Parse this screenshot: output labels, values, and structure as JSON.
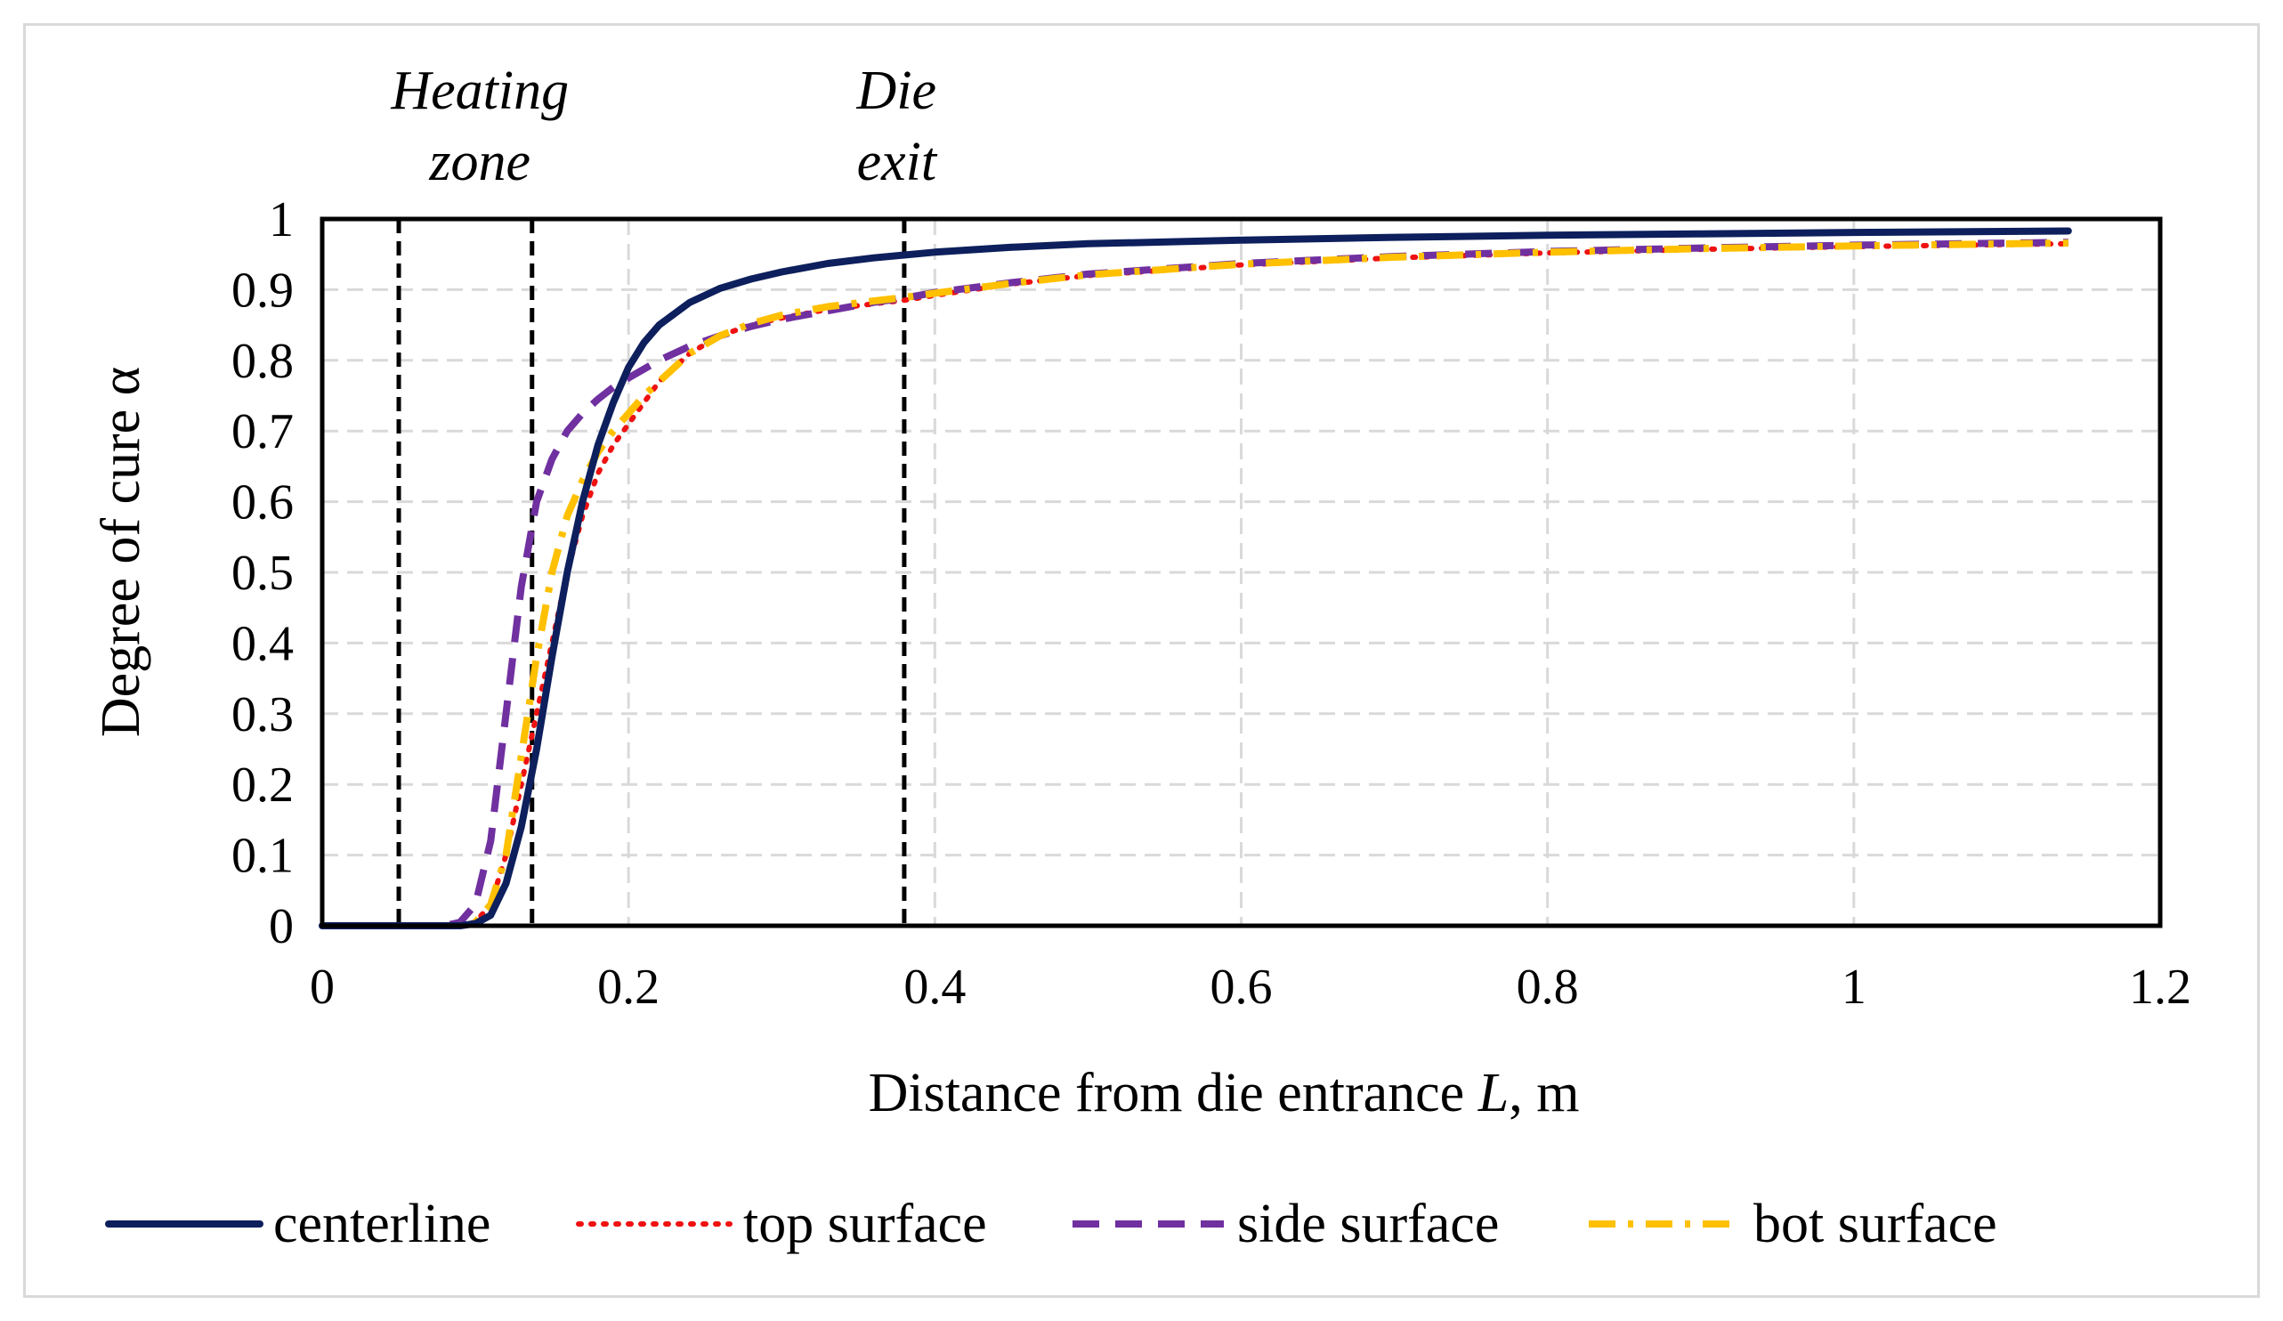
{
  "chart_data": {
    "type": "line",
    "title": "",
    "xlabel": "Distance from die entrance",
    "xlabel_var": "L",
    "xlabel_unit": ", m",
    "ylabel": "Degree of cure α",
    "xlim": [
      0,
      1.2
    ],
    "ylim": [
      0,
      1
    ],
    "xticks": [
      0,
      0.2,
      0.4,
      0.6,
      0.8,
      1,
      1.2
    ],
    "xtick_labels": [
      "0",
      "0.2",
      "0.4",
      "0.6",
      "0.8",
      "1",
      "1.2"
    ],
    "yticks": [
      0,
      0.1,
      0.2,
      0.3,
      0.4,
      0.5,
      0.6,
      0.7,
      0.8,
      0.9,
      1
    ],
    "ytick_labels": [
      "0",
      "0.1",
      "0.2",
      "0.3",
      "0.4",
      "0.5",
      "0.6",
      "0.7",
      "0.8",
      "0.9",
      "1"
    ],
    "grid": true,
    "legend_position": "bottom",
    "vertical_lines": [
      0.05,
      0.137,
      0.38
    ],
    "annotations": [
      {
        "id": "heating",
        "lines": [
          "Heating",
          "zone"
        ],
        "x": 0.103
      },
      {
        "id": "die-exit",
        "lines": [
          "Die",
          "exit"
        ],
        "x": 0.375
      }
    ],
    "series": [
      {
        "name": "centerline",
        "color": "#0d1f5c",
        "style": "solid",
        "x": [
          0,
          0.05,
          0.09,
          0.1,
          0.11,
          0.12,
          0.13,
          0.14,
          0.15,
          0.16,
          0.17,
          0.18,
          0.19,
          0.2,
          0.21,
          0.22,
          0.24,
          0.26,
          0.28,
          0.3,
          0.33,
          0.36,
          0.38,
          0.4,
          0.45,
          0.5,
          0.6,
          0.7,
          0.8,
          0.9,
          1.0,
          1.14
        ],
        "y": [
          0,
          0,
          0,
          0.003,
          0.015,
          0.06,
          0.14,
          0.25,
          0.38,
          0.5,
          0.6,
          0.68,
          0.74,
          0.79,
          0.825,
          0.85,
          0.882,
          0.902,
          0.915,
          0.925,
          0.937,
          0.945,
          0.949,
          0.953,
          0.96,
          0.965,
          0.97,
          0.974,
          0.977,
          0.979,
          0.981,
          0.983
        ]
      },
      {
        "name": "top surface",
        "color": "#ee1111",
        "style": "dotted",
        "x": [
          0,
          0.05,
          0.09,
          0.1,
          0.11,
          0.12,
          0.13,
          0.14,
          0.15,
          0.16,
          0.17,
          0.18,
          0.19,
          0.2,
          0.21,
          0.22,
          0.24,
          0.26,
          0.28,
          0.3,
          0.33,
          0.36,
          0.38,
          0.4,
          0.45,
          0.5,
          0.6,
          0.7,
          0.8,
          0.9,
          1.0,
          1.14
        ],
        "y": [
          0,
          0,
          0,
          0.005,
          0.03,
          0.1,
          0.2,
          0.3,
          0.4,
          0.5,
          0.58,
          0.64,
          0.68,
          0.71,
          0.74,
          0.77,
          0.81,
          0.835,
          0.85,
          0.86,
          0.872,
          0.88,
          0.885,
          0.892,
          0.908,
          0.92,
          0.935,
          0.945,
          0.952,
          0.957,
          0.961,
          0.965
        ]
      },
      {
        "name": "side surface",
        "color": "#7030a0",
        "style": "dashed",
        "x": [
          0,
          0.05,
          0.08,
          0.09,
          0.1,
          0.11,
          0.12,
          0.13,
          0.14,
          0.15,
          0.16,
          0.17,
          0.18,
          0.19,
          0.2,
          0.22,
          0.24,
          0.26,
          0.28,
          0.3,
          0.33,
          0.36,
          0.38,
          0.4,
          0.45,
          0.5,
          0.6,
          0.7,
          0.8,
          0.9,
          1.0,
          1.14
        ],
        "y": [
          0,
          0,
          0,
          0.005,
          0.03,
          0.12,
          0.3,
          0.48,
          0.6,
          0.66,
          0.7,
          0.725,
          0.745,
          0.762,
          0.775,
          0.8,
          0.82,
          0.835,
          0.848,
          0.858,
          0.87,
          0.882,
          0.888,
          0.896,
          0.91,
          0.922,
          0.937,
          0.947,
          0.954,
          0.959,
          0.963,
          0.967
        ]
      },
      {
        "name": "bot surface",
        "color": "#ffc000",
        "style": "dashdot",
        "x": [
          0,
          0.05,
          0.09,
          0.1,
          0.11,
          0.12,
          0.13,
          0.14,
          0.15,
          0.16,
          0.17,
          0.18,
          0.19,
          0.2,
          0.21,
          0.22,
          0.24,
          0.26,
          0.28,
          0.3,
          0.33,
          0.36,
          0.38,
          0.4,
          0.45,
          0.5,
          0.6,
          0.7,
          0.8,
          0.9,
          1.0,
          1.14
        ],
        "y": [
          0,
          0,
          0,
          0.005,
          0.03,
          0.1,
          0.24,
          0.38,
          0.5,
          0.58,
          0.63,
          0.67,
          0.7,
          0.725,
          0.75,
          0.77,
          0.81,
          0.835,
          0.852,
          0.864,
          0.876,
          0.884,
          0.889,
          0.895,
          0.909,
          0.921,
          0.936,
          0.946,
          0.953,
          0.958,
          0.962,
          0.966
        ]
      }
    ]
  }
}
